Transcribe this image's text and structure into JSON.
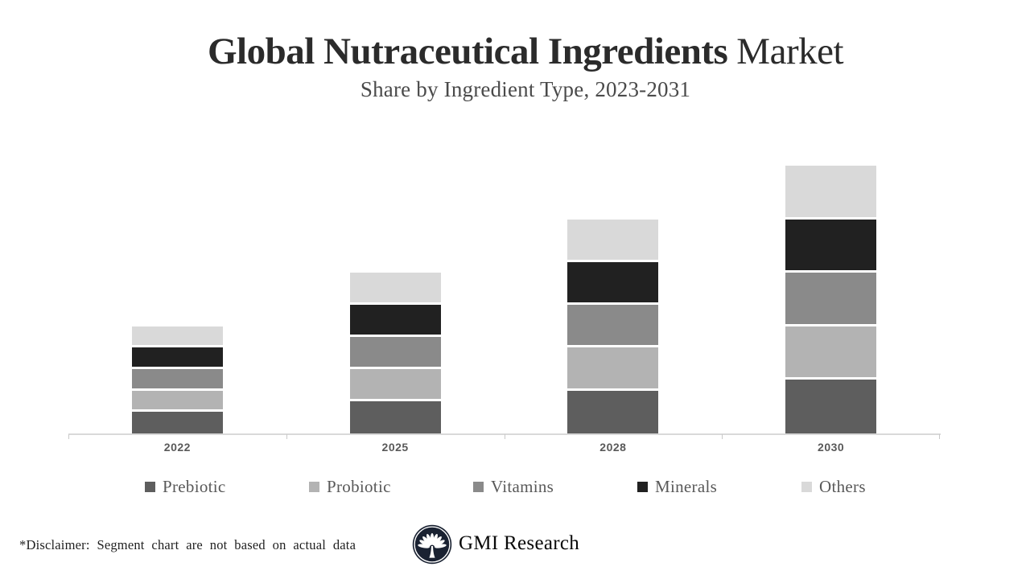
{
  "header": {
    "title_primary": "Global Nutraceutical Ingredients",
    "title_secondary": "Market",
    "subtitle": "Share by Ingredient Type, 2023-2031"
  },
  "chart_data": {
    "type": "bar",
    "stacked": true,
    "title": "Global Nutraceutical Ingredients Market",
    "subtitle": "Share by Ingredient Type, 2023-2031",
    "categories": [
      "2022",
      "2025",
      "2028",
      "2030"
    ],
    "series": [
      {
        "name": "Prebiotic",
        "color": "#5e5e5e",
        "values": [
          2,
          3,
          4,
          5
        ]
      },
      {
        "name": "Probiotic",
        "color": "#b3b3b3",
        "values": [
          2,
          3,
          4,
          5
        ]
      },
      {
        "name": "Vitamins",
        "color": "#8a8a8a",
        "values": [
          2,
          3,
          4,
          5
        ]
      },
      {
        "name": "Minerals",
        "color": "#212121",
        "values": [
          2,
          3,
          4,
          5
        ]
      },
      {
        "name": "Others",
        "color": "#d9d9d9",
        "values": [
          2,
          3,
          4,
          5
        ]
      }
    ],
    "bar_totals": [
      10,
      15,
      20,
      25
    ],
    "value_basis": "illustrative relative units; segments equal (20%) within each bar, bar heights in ratio 10:15:20:25",
    "xlabel": "",
    "ylabel": "",
    "ylim": [
      0,
      27.25
    ],
    "grid": false,
    "y_axis_visible": false,
    "legend_position": "bottom",
    "axis_color": "#d9d9d9",
    "x_label_color": "#595959"
  },
  "footer": {
    "disclaimer": "*Disclaimer:  Segment chart are not based on actual data",
    "brand": "GMI Research",
    "logo_icon": "gmi-fan-tree-logo",
    "logo_color": "#1a2232"
  }
}
